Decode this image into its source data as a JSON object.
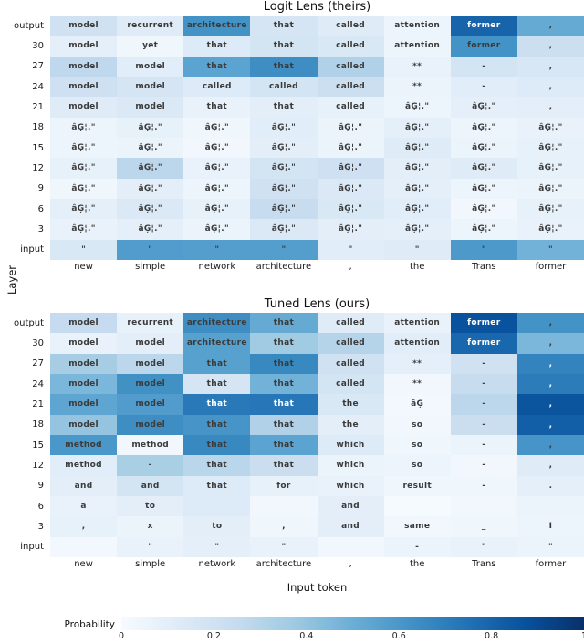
{
  "figure": {
    "ylabel": "Layer",
    "xlabel": "Input token",
    "colorbar": {
      "label": "Probability",
      "ticks": [
        "0",
        "0.2",
        "0.4",
        "0.6",
        "0.8",
        "1"
      ],
      "gradient": [
        "#f7fbff",
        "#deebf7",
        "#c6dbef",
        "#9ecae1",
        "#6baed6",
        "#4292c6",
        "#2171b5",
        "#08519c",
        "#08306b"
      ]
    },
    "text_dark": "#3b3b3b",
    "text_light": "#ffffff"
  },
  "chart_data": [
    {
      "type": "heatmap",
      "title": "Logit Lens (theirs)",
      "rows": [
        "output",
        "30",
        "27",
        "24",
        "21",
        "18",
        "15",
        "12",
        "9",
        "6",
        "3",
        "input"
      ],
      "columns": [
        "new",
        "simple",
        "network",
        "architecture",
        ",",
        "the",
        "Trans",
        "former"
      ],
      "cell_text": [
        [
          "model",
          "recurrent",
          "architecture",
          "that",
          "called",
          "attention",
          "former",
          ","
        ],
        [
          "model",
          "yet",
          "that",
          "that",
          "called",
          "attention",
          "former",
          ","
        ],
        [
          "model",
          "model",
          "that",
          "that",
          "called",
          "**",
          "-",
          ","
        ],
        [
          "model",
          "model",
          "called",
          "called",
          "called",
          "**",
          "-",
          ","
        ],
        [
          "model",
          "model",
          "that",
          "that",
          "called",
          "âĢ¦.\"",
          "âĢ¦.\"",
          ","
        ],
        [
          "âĢ¦.\"",
          "âĢ¦.\"",
          "âĢ¦.\"",
          "âĢ¦.\"",
          "âĢ¦.\"",
          "âĢ¦.\"",
          "âĢ¦.\"",
          "âĢ¦.\""
        ],
        [
          "âĢ¦.\"",
          "âĢ¦.\"",
          "âĢ¦.\"",
          "âĢ¦.\"",
          "âĢ¦.\"",
          "âĢ¦.\"",
          "âĢ¦.\"",
          "âĢ¦.\""
        ],
        [
          "âĢ¦.\"",
          "âĢ¦.\"",
          "âĢ¦.\"",
          "âĢ¦.\"",
          "âĢ¦.\"",
          "âĢ¦.\"",
          "âĢ¦.\"",
          "âĢ¦.\""
        ],
        [
          "âĢ¦.\"",
          "âĢ¦.\"",
          "âĢ¦.\"",
          "âĢ¦.\"",
          "âĢ¦.\"",
          "âĢ¦.\"",
          "âĢ¦.\"",
          "âĢ¦.\""
        ],
        [
          "âĢ¦.\"",
          "âĢ¦.\"",
          "âĢ¦.\"",
          "âĢ¦.\"",
          "âĢ¦.\"",
          "âĢ¦.\"",
          "âĢ¦.\"",
          "âĢ¦.\""
        ],
        [
          "âĢ¦.\"",
          "âĢ¦.\"",
          "âĢ¦.\"",
          "âĢ¦.\"",
          "âĢ¦.\"",
          "âĢ¦.\"",
          "âĢ¦.\"",
          "âĢ¦.\""
        ],
        [
          "\"",
          "\"",
          "\"",
          "\"",
          "\"",
          "\"",
          "\"",
          "\""
        ]
      ],
      "cell_values": [
        [
          0.2,
          0.12,
          0.62,
          0.17,
          0.12,
          0.05,
          0.8,
          0.52
        ],
        [
          0.09,
          0.04,
          0.13,
          0.18,
          0.15,
          0.05,
          0.62,
          0.22
        ],
        [
          0.27,
          0.11,
          0.55,
          0.64,
          0.32,
          0.07,
          0.18,
          0.16
        ],
        [
          0.21,
          0.17,
          0.13,
          0.18,
          0.22,
          0.06,
          0.11,
          0.13
        ],
        [
          0.12,
          0.14,
          0.07,
          0.1,
          0.08,
          0.05,
          0.09,
          0.1
        ],
        [
          0.05,
          0.08,
          0.04,
          0.11,
          0.06,
          0.09,
          0.05,
          0.07
        ],
        [
          0.05,
          0.06,
          0.03,
          0.1,
          0.06,
          0.12,
          0.06,
          0.08
        ],
        [
          0.08,
          0.28,
          0.07,
          0.18,
          0.21,
          0.1,
          0.12,
          0.08
        ],
        [
          0.04,
          0.1,
          0.05,
          0.2,
          0.14,
          0.09,
          0.05,
          0.06
        ],
        [
          0.09,
          0.14,
          0.08,
          0.24,
          0.15,
          0.11,
          0.03,
          0.08
        ],
        [
          0.07,
          0.09,
          0.06,
          0.14,
          0.1,
          0.09,
          0.05,
          0.07
        ],
        [
          0.15,
          0.58,
          0.57,
          0.57,
          0.11,
          0.12,
          0.59,
          0.48
        ]
      ]
    },
    {
      "type": "heatmap",
      "title": "Tuned Lens (ours)",
      "rows": [
        "output",
        "30",
        "27",
        "24",
        "21",
        "18",
        "15",
        "12",
        "9",
        "6",
        "3",
        "input"
      ],
      "columns": [
        "new",
        "simple",
        "network",
        "architecture",
        ",",
        "the",
        "Trans",
        "former"
      ],
      "cell_text": [
        [
          "model",
          "recurrent",
          "architecture",
          "that",
          "called",
          "attention",
          "former",
          ","
        ],
        [
          "model",
          "model",
          "architecture",
          "that",
          "called",
          "attention",
          "former",
          ","
        ],
        [
          "model",
          "model",
          "that",
          "that",
          "called",
          "**",
          "-",
          ","
        ],
        [
          "model",
          "model",
          "that",
          "that",
          "called",
          "**",
          "-",
          ","
        ],
        [
          "model",
          "model",
          "that",
          "that",
          "the",
          "âĢ",
          "-",
          ","
        ],
        [
          "model",
          "model",
          "that",
          "that",
          "the",
          "so",
          "-",
          ","
        ],
        [
          "method",
          "method",
          "that",
          "that",
          "which",
          "so",
          "-",
          ","
        ],
        [
          "method",
          "-",
          "that",
          "that",
          "which",
          "so",
          "-",
          ","
        ],
        [
          "and",
          "and",
          "that",
          "for",
          "which",
          "result",
          "-",
          "."
        ],
        [
          "a",
          "to",
          "",
          "",
          "and",
          "",
          "",
          ""
        ],
        [
          ",",
          "x",
          "to",
          ",",
          "and",
          "same",
          "_",
          "I"
        ],
        [
          "",
          "\"",
          "\"",
          "\"",
          "",
          "-",
          "\"",
          "\""
        ]
      ],
      "cell_values": [
        [
          0.25,
          0.08,
          0.64,
          0.52,
          0.12,
          0.07,
          0.87,
          0.62
        ],
        [
          0.07,
          0.1,
          0.56,
          0.37,
          0.3,
          0.11,
          0.79,
          0.46
        ],
        [
          0.35,
          0.28,
          0.56,
          0.66,
          0.2,
          0.09,
          0.2,
          0.68
        ],
        [
          0.46,
          0.63,
          0.17,
          0.48,
          0.18,
          0.03,
          0.24,
          0.71
        ],
        [
          0.54,
          0.58,
          0.72,
          0.73,
          0.15,
          0.02,
          0.28,
          0.86
        ],
        [
          0.4,
          0.64,
          0.61,
          0.32,
          0.1,
          0.03,
          0.23,
          0.82
        ],
        [
          0.6,
          0.03,
          0.66,
          0.55,
          0.13,
          0.04,
          0.06,
          0.61
        ],
        [
          0.11,
          0.34,
          0.29,
          0.23,
          0.06,
          0.05,
          0.03,
          0.12
        ],
        [
          0.1,
          0.18,
          0.13,
          0.08,
          0.07,
          0.04,
          0.04,
          0.09
        ],
        [
          0.07,
          0.1,
          0.13,
          0.03,
          0.1,
          0.01,
          0.03,
          0.06
        ],
        [
          0.08,
          0.06,
          0.1,
          0.04,
          0.1,
          0.03,
          0.04,
          0.05
        ],
        [
          0.02,
          0.07,
          0.09,
          0.07,
          0.03,
          0.06,
          0.07,
          0.06
        ]
      ]
    }
  ]
}
